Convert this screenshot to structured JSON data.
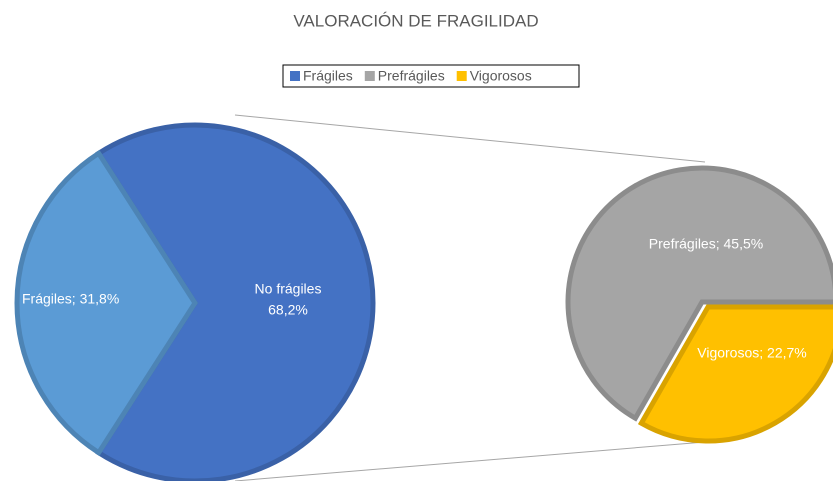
{
  "chart_data": {
    "type": "pie_of_pie",
    "title": "VALORACIÓN DE FRAGILIDAD",
    "legend_position": "top",
    "primary": {
      "categories": [
        "Frágiles",
        "No frágiles"
      ],
      "values": [
        31.8,
        68.2
      ],
      "value_labels": [
        "Frágiles; 31,8%",
        "68,2%"
      ],
      "colors": [
        "#5b9bd5",
        "#4472c4"
      ]
    },
    "secondary": {
      "categories": [
        "Prefrágiles",
        "Vigorosos"
      ],
      "values": [
        45.5,
        22.7
      ],
      "value_labels": [
        "Prefrágiles; 45,5%",
        "Vigorosos; 22,7%"
      ],
      "colors": [
        "#a5a5a5",
        "#ffc000"
      ]
    }
  }
}
